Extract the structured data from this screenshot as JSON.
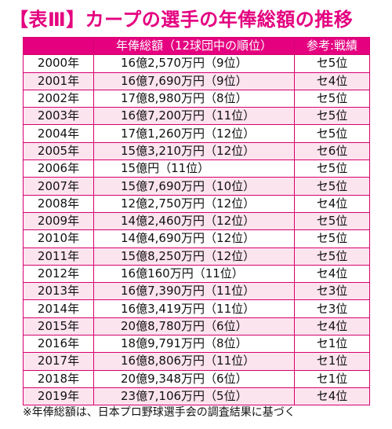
{
  "title": "【表Ⅲ】カープの選手の年俸総額の推移",
  "table": {
    "headers": [
      "",
      "年俸総額（12球団中の順位）",
      "参考:戦績"
    ],
    "rows": [
      {
        "year": "2000年",
        "payroll": "16億2,570万円（9位）",
        "record": "セ5位"
      },
      {
        "year": "2001年",
        "payroll": "16億7,690万円（9位）",
        "record": "セ4位"
      },
      {
        "year": "2002年",
        "payroll": "17億8,980万円（8位）",
        "record": "セ5位"
      },
      {
        "year": "2003年",
        "payroll": "16億7,200万円（11位）",
        "record": "セ5位"
      },
      {
        "year": "2004年",
        "payroll": "17億1,260万円（12位）",
        "record": "セ5位"
      },
      {
        "year": "2005年",
        "payroll": "15億3,210万円（12位）",
        "record": "セ6位"
      },
      {
        "year": "2006年",
        "payroll": "15億円（11位）",
        "record": "セ5位"
      },
      {
        "year": "2007年",
        "payroll": "15億7,690万円（10位）",
        "record": "セ5位"
      },
      {
        "year": "2008年",
        "payroll": "12億2,750万円（12位）",
        "record": "セ4位"
      },
      {
        "year": "2009年",
        "payroll": "14億2,460万円（12位）",
        "record": "セ5位"
      },
      {
        "year": "2010年",
        "payroll": "14億4,690万円（12位）",
        "record": "セ5位"
      },
      {
        "year": "2011年",
        "payroll": "15億8,250万円（12位）",
        "record": "セ5位"
      },
      {
        "year": "2012年",
        "payroll": "16億160万円（11位）",
        "record": "セ4位"
      },
      {
        "year": "2013年",
        "payroll": "16億7,390万円（11位）",
        "record": "セ3位"
      },
      {
        "year": "2014年",
        "payroll": "16億3,419万円（11位）",
        "record": "セ3位"
      },
      {
        "year": "2015年",
        "payroll": "20億8,780万円（6位）",
        "record": "セ4位"
      },
      {
        "year": "2016年",
        "payroll": "18億9,791万円（8位）",
        "record": "セ1位"
      },
      {
        "year": "2017年",
        "payroll": "16億8,806万円（11位）",
        "record": "セ1位"
      },
      {
        "year": "2018年",
        "payroll": "20億9,348万円（6位）",
        "record": "セ1位"
      },
      {
        "year": "2019年",
        "payroll": "23億7,106万円（5位）",
        "record": "セ4位"
      }
    ]
  },
  "note": "※年俸総額は、日本プロ野球選手会の調査結果に基づく",
  "colors": {
    "accent": "#e4007f",
    "stripe": "#fce4ef"
  }
}
